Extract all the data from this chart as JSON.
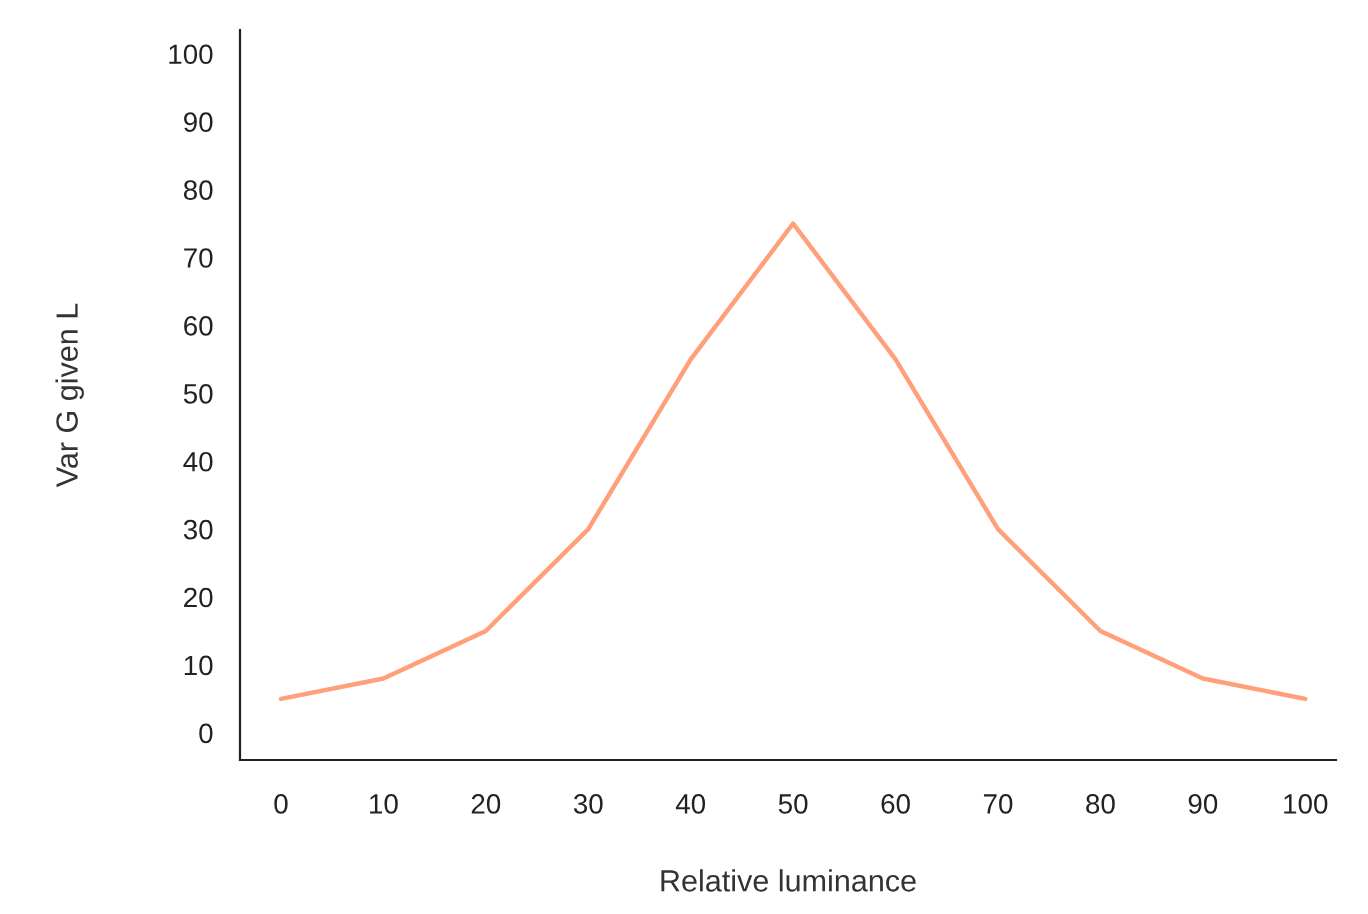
{
  "chart_data": {
    "type": "line",
    "xlabel": "Relative luminance",
    "ylabel": "Var G given L",
    "x": [
      0,
      10,
      20,
      30,
      40,
      50,
      60,
      70,
      80,
      90,
      100
    ],
    "series": [
      {
        "color": "#ffa07a",
        "values": [
          5,
          8,
          15,
          30,
          55,
          75,
          55,
          30,
          15,
          8,
          5
        ]
      }
    ],
    "xlim": [
      -4,
      103
    ],
    "ylim": [
      -4,
      103.5
    ],
    "xticks": [
      0,
      10,
      20,
      30,
      40,
      50,
      60,
      70,
      80,
      90,
      100
    ],
    "yticks": [
      0,
      10,
      20,
      30,
      40,
      50,
      60,
      70,
      80,
      90,
      100
    ],
    "grid": false,
    "marker": "none",
    "line_style": "solid"
  }
}
